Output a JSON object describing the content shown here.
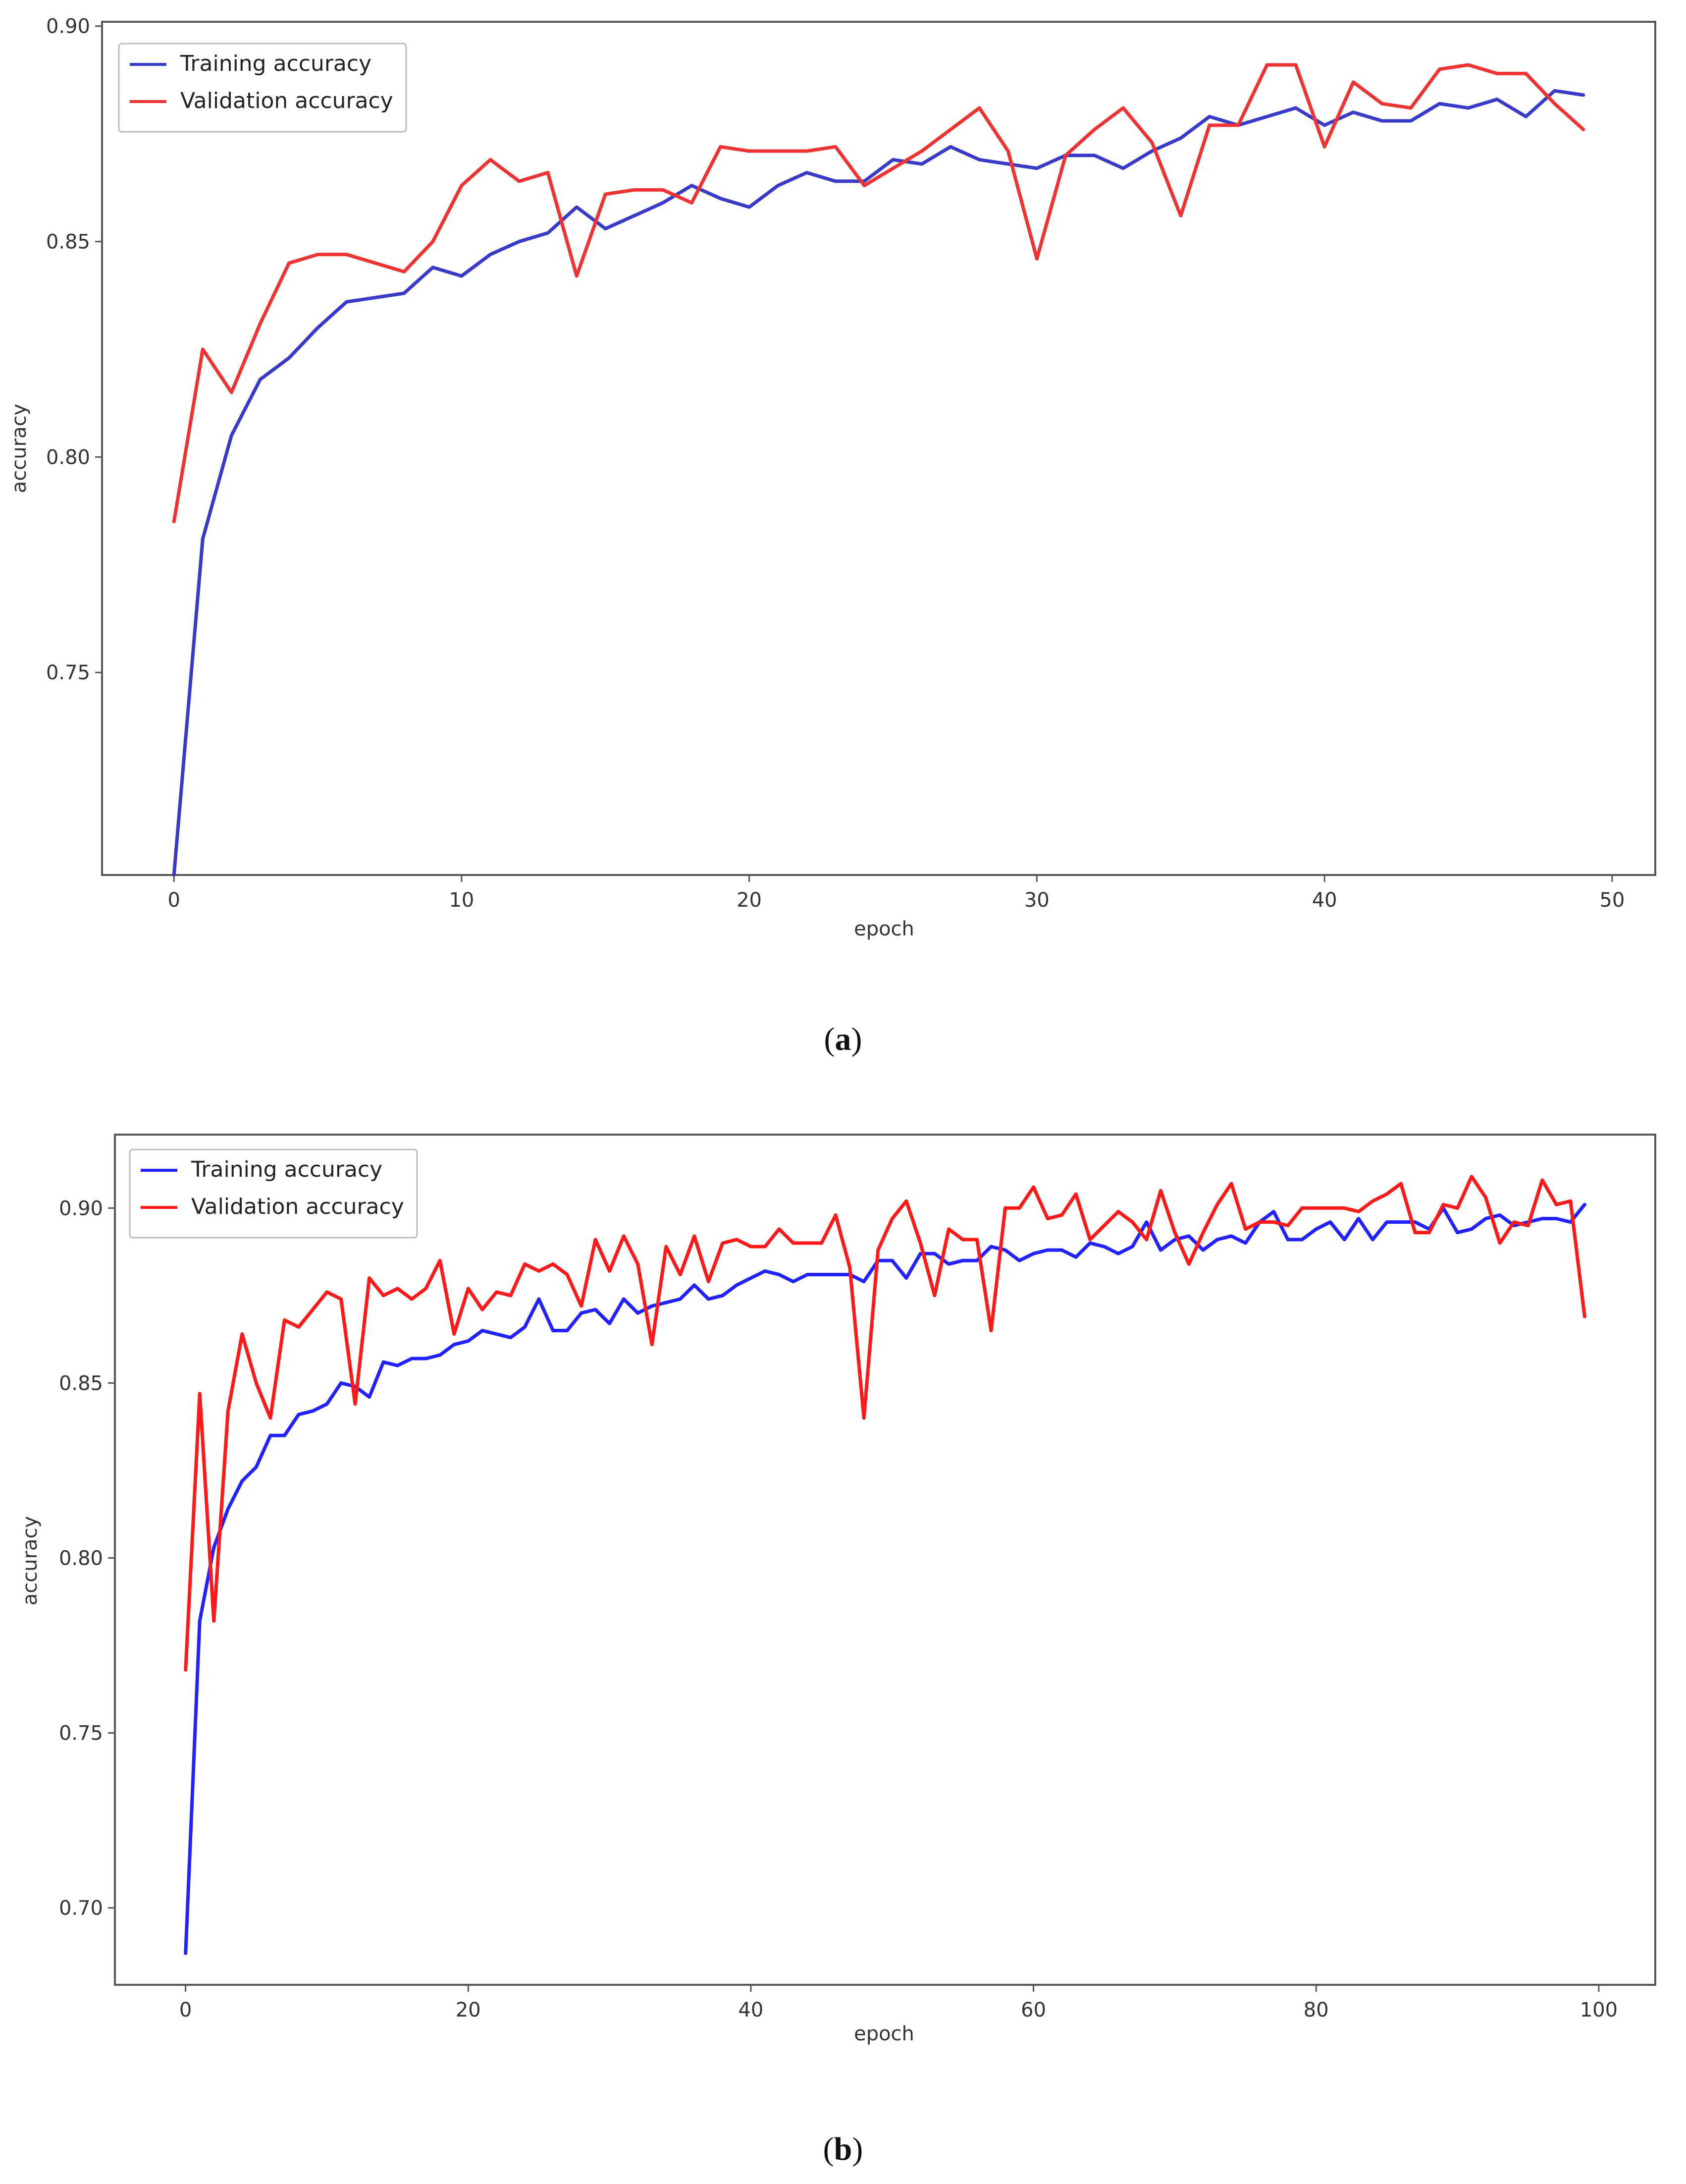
{
  "chart_data": [
    {
      "type": "line",
      "panel": "a",
      "caption": "a",
      "xlabel": "epoch",
      "ylabel": "accuracy",
      "xlim": [
        -2.5,
        51.5
      ],
      "ylim": [
        0.703,
        0.901
      ],
      "xticks": [
        0,
        10,
        20,
        30,
        40,
        50
      ],
      "xtick_labels": [
        "0",
        "10",
        "20",
        "30",
        "40",
        "50"
      ],
      "yticks": [
        0.75,
        0.8,
        0.85,
        0.9
      ],
      "ytick_labels": [
        "0.75",
        "0.80",
        "0.85",
        "0.90"
      ],
      "grid": false,
      "legend_position": "upper-left",
      "series": [
        {
          "name": "Training accuracy",
          "color": "#3a3ac8",
          "x": [
            0,
            1,
            2,
            3,
            4,
            5,
            6,
            7,
            8,
            9,
            10,
            11,
            12,
            13,
            14,
            15,
            16,
            17,
            18,
            19,
            20,
            21,
            22,
            23,
            24,
            25,
            26,
            27,
            28,
            29,
            30,
            31,
            32,
            33,
            34,
            35,
            36,
            37,
            38,
            39,
            40,
            41,
            42,
            43,
            44,
            45,
            46,
            47,
            48,
            49
          ],
          "values": [
            0.703,
            0.781,
            0.805,
            0.818,
            0.823,
            0.83,
            0.836,
            0.837,
            0.838,
            0.844,
            0.842,
            0.847,
            0.85,
            0.852,
            0.858,
            0.853,
            0.856,
            0.859,
            0.863,
            0.86,
            0.858,
            0.863,
            0.866,
            0.864,
            0.864,
            0.869,
            0.868,
            0.872,
            0.869,
            0.868,
            0.867,
            0.87,
            0.87,
            0.867,
            0.871,
            0.874,
            0.879,
            0.877,
            0.879,
            0.881,
            0.877,
            0.88,
            0.878,
            0.878,
            0.882,
            0.881,
            0.883,
            0.879,
            0.885,
            0.884
          ]
        },
        {
          "name": "Validation accuracy",
          "color": "#ee3333",
          "x": [
            0,
            1,
            2,
            3,
            4,
            5,
            6,
            7,
            8,
            9,
            10,
            11,
            12,
            13,
            14,
            15,
            16,
            17,
            18,
            19,
            20,
            21,
            22,
            23,
            24,
            25,
            26,
            27,
            28,
            29,
            30,
            31,
            32,
            33,
            34,
            35,
            36,
            37,
            38,
            39,
            40,
            41,
            42,
            43,
            44,
            45,
            46,
            47,
            48,
            49
          ],
          "values": [
            0.785,
            0.825,
            0.815,
            0.831,
            0.845,
            0.847,
            0.847,
            0.845,
            0.843,
            0.85,
            0.863,
            0.869,
            0.864,
            0.866,
            0.842,
            0.861,
            0.862,
            0.862,
            0.859,
            0.872,
            0.871,
            0.871,
            0.871,
            0.872,
            0.863,
            0.867,
            0.871,
            0.876,
            0.881,
            0.871,
            0.846,
            0.87,
            0.876,
            0.881,
            0.873,
            0.856,
            0.877,
            0.877,
            0.891,
            0.891,
            0.872,
            0.887,
            0.882,
            0.881,
            0.89,
            0.891,
            0.889,
            0.889,
            0.882,
            0.876
          ]
        }
      ]
    },
    {
      "type": "line",
      "panel": "b",
      "caption": "b",
      "xlabel": "epoch",
      "ylabel": "accuracy",
      "xlim": [
        -5,
        104
      ],
      "ylim": [
        0.678,
        0.921
      ],
      "xticks": [
        0,
        20,
        40,
        60,
        80,
        100
      ],
      "xtick_labels": [
        "0",
        "20",
        "40",
        "60",
        "80",
        "100"
      ],
      "yticks": [
        0.7,
        0.75,
        0.8,
        0.85,
        0.9
      ],
      "ytick_labels": [
        "0.70",
        "0.75",
        "0.80",
        "0.85",
        "0.90"
      ],
      "grid": false,
      "legend_position": "upper-left",
      "series": [
        {
          "name": "Training accuracy",
          "color": "#2222ff",
          "x": [
            0,
            1,
            2,
            3,
            4,
            5,
            6,
            7,
            8,
            9,
            10,
            11,
            12,
            13,
            14,
            15,
            16,
            17,
            18,
            19,
            20,
            21,
            22,
            23,
            24,
            25,
            26,
            27,
            28,
            29,
            30,
            31,
            32,
            33,
            34,
            35,
            36,
            37,
            38,
            39,
            40,
            41,
            42,
            43,
            44,
            45,
            46,
            47,
            48,
            49,
            50,
            51,
            52,
            53,
            54,
            55,
            56,
            57,
            58,
            59,
            60,
            61,
            62,
            63,
            64,
            65,
            66,
            67,
            68,
            69,
            70,
            71,
            72,
            73,
            74,
            75,
            76,
            77,
            78,
            79,
            80,
            81,
            82,
            83,
            84,
            85,
            86,
            87,
            88,
            89,
            90,
            91,
            92,
            93,
            94,
            95,
            96,
            97,
            98,
            99
          ],
          "values": [
            0.687,
            0.782,
            0.803,
            0.814,
            0.822,
            0.826,
            0.835,
            0.835,
            0.841,
            0.842,
            0.844,
            0.85,
            0.849,
            0.846,
            0.856,
            0.855,
            0.857,
            0.857,
            0.858,
            0.861,
            0.862,
            0.865,
            0.864,
            0.863,
            0.866,
            0.874,
            0.865,
            0.865,
            0.87,
            0.871,
            0.867,
            0.874,
            0.87,
            0.872,
            0.873,
            0.874,
            0.878,
            0.874,
            0.875,
            0.878,
            0.88,
            0.882,
            0.881,
            0.879,
            0.881,
            0.881,
            0.881,
            0.881,
            0.879,
            0.885,
            0.885,
            0.88,
            0.887,
            0.887,
            0.884,
            0.885,
            0.885,
            0.889,
            0.888,
            0.885,
            0.887,
            0.888,
            0.888,
            0.886,
            0.89,
            0.889,
            0.887,
            0.889,
            0.896,
            0.888,
            0.891,
            0.892,
            0.888,
            0.891,
            0.892,
            0.89,
            0.896,
            0.899,
            0.891,
            0.891,
            0.894,
            0.896,
            0.891,
            0.897,
            0.891,
            0.896,
            0.896,
            0.896,
            0.894,
            0.9,
            0.893,
            0.894,
            0.897,
            0.898,
            0.895,
            0.896,
            0.897,
            0.897,
            0.896,
            0.901
          ]
        },
        {
          "name": "Validation accuracy",
          "color": "#ff1a1a",
          "x": [
            0,
            1,
            2,
            3,
            4,
            5,
            6,
            7,
            8,
            9,
            10,
            11,
            12,
            13,
            14,
            15,
            16,
            17,
            18,
            19,
            20,
            21,
            22,
            23,
            24,
            25,
            26,
            27,
            28,
            29,
            30,
            31,
            32,
            33,
            34,
            35,
            36,
            37,
            38,
            39,
            40,
            41,
            42,
            43,
            44,
            45,
            46,
            47,
            48,
            49,
            50,
            51,
            52,
            53,
            54,
            55,
            56,
            57,
            58,
            59,
            60,
            61,
            62,
            63,
            64,
            65,
            66,
            67,
            68,
            69,
            70,
            71,
            72,
            73,
            74,
            75,
            76,
            77,
            78,
            79,
            80,
            81,
            82,
            83,
            84,
            85,
            86,
            87,
            88,
            89,
            90,
            91,
            92,
            93,
            94,
            95,
            96,
            97,
            98,
            99
          ],
          "values": [
            0.768,
            0.847,
            0.782,
            0.842,
            0.864,
            0.85,
            0.84,
            0.868,
            0.866,
            0.871,
            0.876,
            0.874,
            0.844,
            0.88,
            0.875,
            0.877,
            0.874,
            0.877,
            0.885,
            0.864,
            0.877,
            0.871,
            0.876,
            0.875,
            0.884,
            0.882,
            0.884,
            0.881,
            0.872,
            0.891,
            0.882,
            0.892,
            0.884,
            0.861,
            0.889,
            0.881,
            0.892,
            0.879,
            0.89,
            0.891,
            0.889,
            0.889,
            0.894,
            0.89,
            0.89,
            0.89,
            0.898,
            0.883,
            0.84,
            0.888,
            0.897,
            0.902,
            0.89,
            0.875,
            0.894,
            0.891,
            0.891,
            0.865,
            0.9,
            0.9,
            0.906,
            0.897,
            0.898,
            0.904,
            0.891,
            0.895,
            0.899,
            0.896,
            0.891,
            0.905,
            0.893,
            0.884,
            0.893,
            0.901,
            0.907,
            0.894,
            0.896,
            0.896,
            0.895,
            0.9,
            0.9,
            0.9,
            0.9,
            0.899,
            0.902,
            0.904,
            0.907,
            0.893,
            0.893,
            0.901,
            0.9,
            0.909,
            0.903,
            0.89,
            0.896,
            0.895,
            0.908,
            0.901,
            0.902,
            0.869
          ]
        }
      ]
    }
  ]
}
